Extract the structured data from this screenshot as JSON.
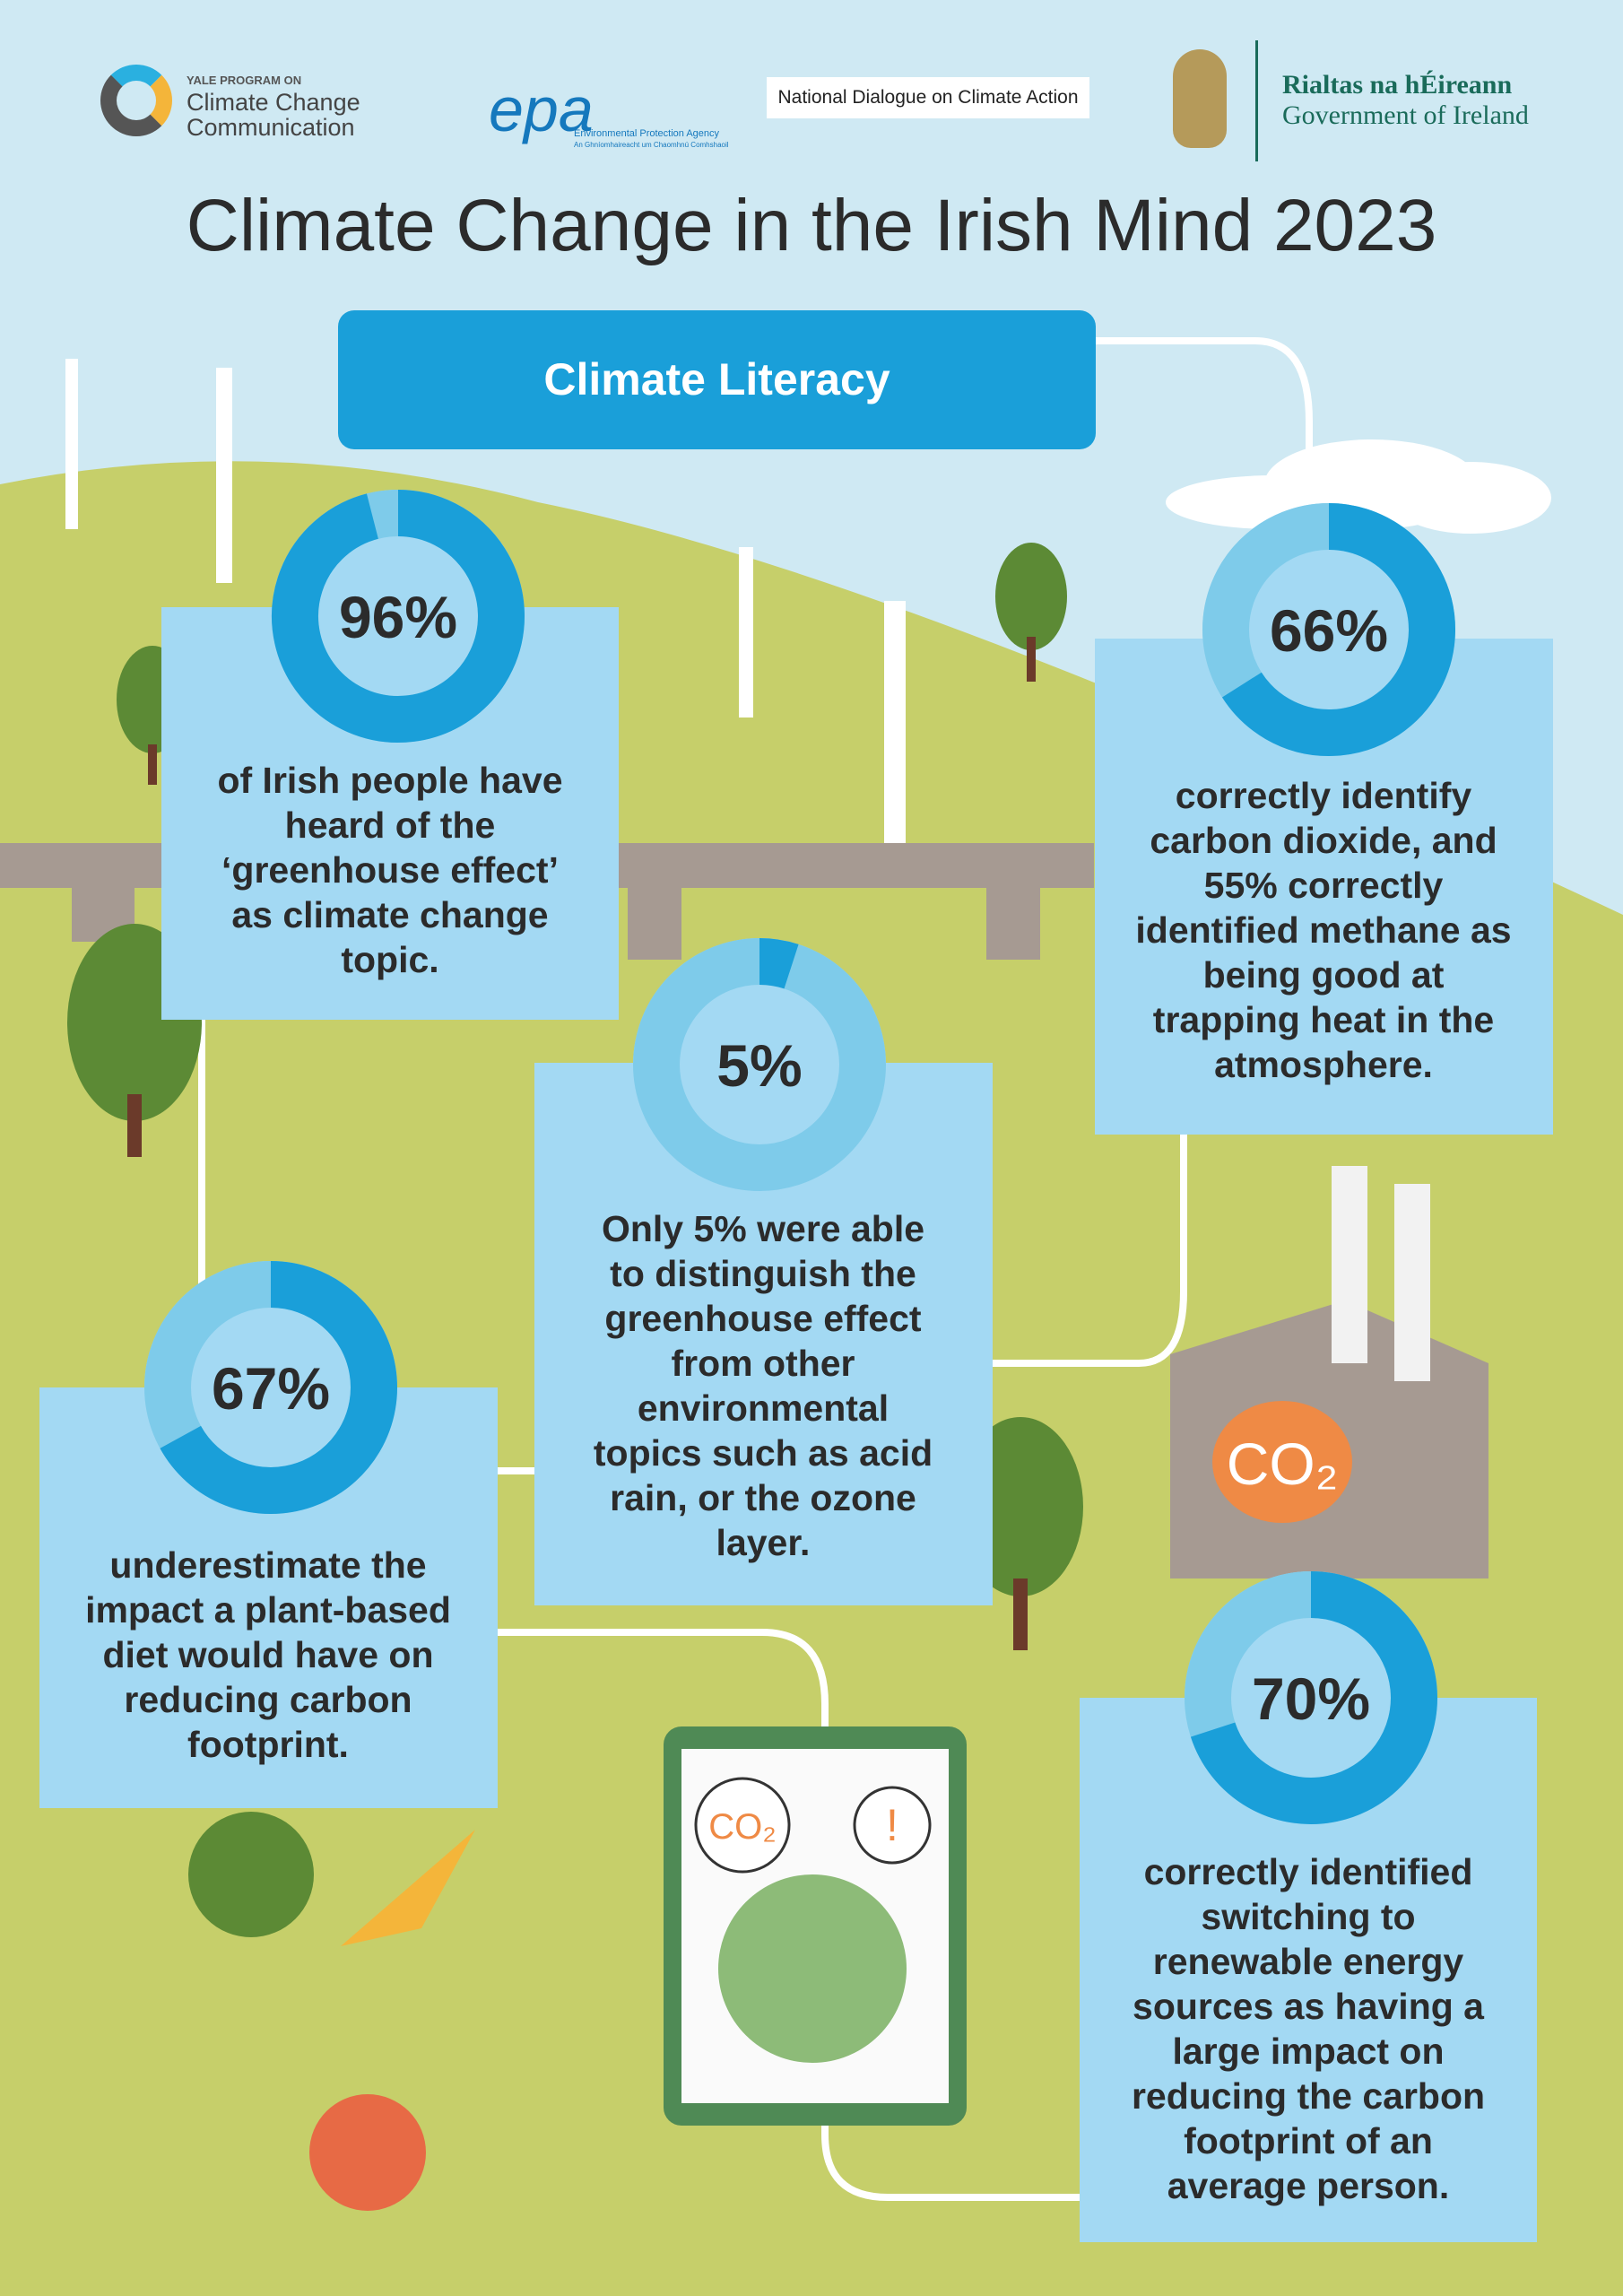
{
  "header": {
    "logos": {
      "yale_small": "YALE PROGRAM ON",
      "yale_name": "Climate Change Communication",
      "epa": "epa",
      "epa_name": "Environmental Protection Agency",
      "epa_irish": "An Ghníomhaireacht um Chaomhnú Comhshaoil",
      "dialogue": "National Dialogue on Climate Action",
      "gov_irish": "Rialtas na hÉireann",
      "gov_english": "Government of Ireland"
    },
    "title": "Climate Change in the Irish Mind 2023"
  },
  "section": {
    "title": "Climate Literacy"
  },
  "stats": [
    {
      "value": 96,
      "value_label": "96%",
      "text": "of Irish people have heard of the ‘greenhouse effect’ as climate change topic."
    },
    {
      "value": 66,
      "value_label": "66%",
      "text": "correctly identify carbon dioxide, and 55% correctly identified methane as being good at trapping heat in the atmosphere."
    },
    {
      "value": 5,
      "value_label": "5%",
      "text": "Only 5% were able to distinguish the greenhouse effect from other environmental topics such as acid rain, or the ozone layer."
    },
    {
      "value": 67,
      "value_label": "67%",
      "text": "underestimate the impact a plant-based diet would have on reducing carbon footprint."
    },
    {
      "value": 70,
      "value_label": "70%",
      "text": "correctly identified switching to renewable energy sources as having a large impact on reducing the carbon footprint of an average person."
    }
  ],
  "illustrations": {
    "co2": "CO₂",
    "alert": "!"
  }
}
